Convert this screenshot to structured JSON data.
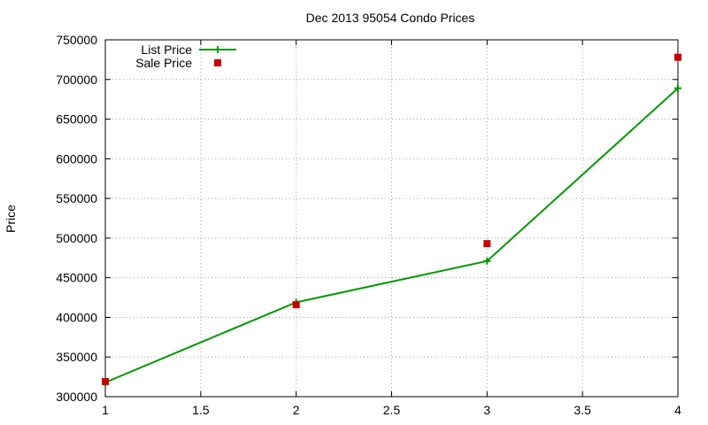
{
  "chart_data": {
    "type": "line",
    "title": "Dec 2013 95054 Condo Prices",
    "xlabel": "",
    "ylabel": "Price",
    "xlim": [
      1,
      4
    ],
    "ylim": [
      300000,
      750000
    ],
    "x_ticks": [
      "1",
      "1.5",
      "2",
      "2.5",
      "3",
      "3.5",
      "4"
    ],
    "x_tick_values": [
      1,
      1.5,
      2,
      2.5,
      3,
      3.5,
      4
    ],
    "y_ticks": [
      "300000",
      "350000",
      "400000",
      "450000",
      "500000",
      "550000",
      "600000",
      "650000",
      "700000",
      "750000"
    ],
    "y_tick_values": [
      300000,
      350000,
      400000,
      450000,
      500000,
      550000,
      600000,
      650000,
      700000,
      750000
    ],
    "grid": true,
    "legend_position": "top-left",
    "series": [
      {
        "name": "List Price",
        "style": "line+cross",
        "color": "#009900",
        "points": [
          {
            "x": 1,
            "y": 318000
          },
          {
            "x": 2,
            "y": 419000
          },
          {
            "x": 3,
            "y": 471000
          },
          {
            "x": 4,
            "y": 689000
          }
        ]
      },
      {
        "name": "Sale Price",
        "style": "square",
        "color": "#cc0000",
        "points": [
          {
            "x": 1,
            "y": 319000
          },
          {
            "x": 2,
            "y": 416000
          },
          {
            "x": 3,
            "y": 493000
          },
          {
            "x": 4,
            "y": 728000
          }
        ]
      }
    ]
  }
}
